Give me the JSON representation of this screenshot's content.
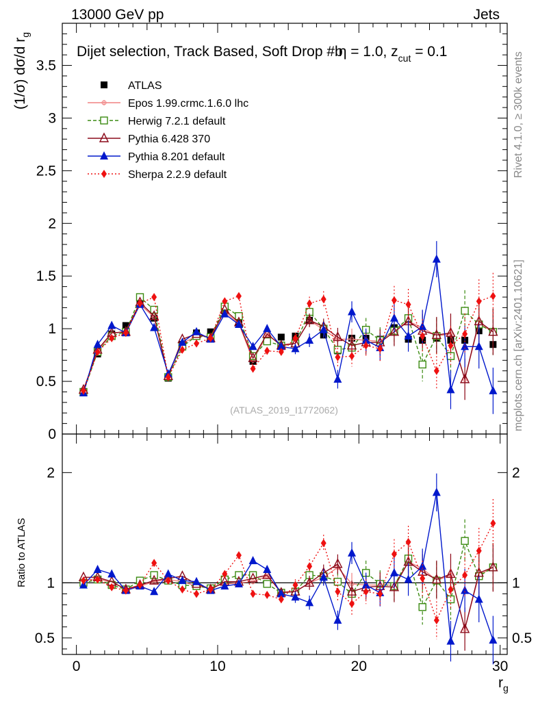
{
  "header": {
    "left": "13000 GeV pp",
    "right": "Jets",
    "title": "Dijet selection, Track Based, Soft Drop #b",
    "title_eta": "η = 1.0, z",
    "title_cut": "cut",
    "title_tail": " = 0.1"
  },
  "side_labels": {
    "rivet": "Rivet 4.1.0, ≥ 300k events",
    "mcplots": "mcplots.cern.ch [arXiv:2401.10621]"
  },
  "watermark": "(ATLAS_2019_I1772062)",
  "axes": {
    "ylabel_main": "(1/σ) dσ/d r",
    "ylabel_main_sub": "g",
    "ylabel_ratio": "Ratio to ATLAS",
    "xlabel": "r",
    "xlabel_sub": "g"
  },
  "colors": {
    "data": "#000000",
    "epos": "#f08080",
    "herwig": "#3a8a10",
    "pythia6": "#8b0a1a",
    "pythia8": "#0018cc",
    "sherpa": "#ee1111"
  },
  "chart_data": [
    {
      "type": "scatter",
      "panel": "main",
      "xlim": [
        -1,
        30.5
      ],
      "ylim": [
        0,
        3.9
      ],
      "xticks": [
        0,
        10,
        20,
        30
      ],
      "yticks": [
        0,
        0.5,
        1,
        1.5,
        2,
        2.5,
        3,
        3.5
      ],
      "ytick_labels": [
        "0",
        "0.5",
        "1",
        "1.5",
        "2",
        "2.5",
        "3",
        "3.5"
      ],
      "x": [
        0.5,
        1.5,
        2.5,
        3.5,
        4.5,
        5.5,
        6.5,
        7.5,
        8.5,
        9.5,
        10.5,
        11.5,
        12.5,
        13.5,
        14.5,
        15.5,
        16.5,
        17.5,
        18.5,
        19.5,
        20.5,
        21.5,
        22.5,
        23.5,
        24.5,
        25.5,
        26.5,
        27.5,
        28.5,
        29.5
      ],
      "series": [
        {
          "name": "ATLAS",
          "key": "data",
          "marker": "square",
          "values": [
            0.4,
            0.76,
            0.95,
            1.03,
            1.27,
            1.1,
            0.53,
            0.85,
            0.96,
            0.97,
            1.17,
            1.05,
            0.69,
            0.89,
            0.92,
            0.93,
            1.08,
            0.94,
            0.79,
            0.91,
            0.91,
            0.9,
            1.01,
            0.9,
            0.89,
            0.91,
            0.89,
            0.89,
            0.98,
            0.85
          ]
        },
        {
          "name": "Epos 1.99.crmc.1.6.0 lhc",
          "key": "epos",
          "marker": "cross",
          "values": [
            0.41,
            0.79,
            0.95,
            0.98,
            1.23,
            1.11,
            0.55,
            0.86,
            0.93,
            0.93,
            1.16,
            1.05,
            0.7,
            0.94,
            0.85,
            0.86,
            1.08,
            0.99,
            0.9,
            0.9,
            0.89,
            0.88,
            0.99,
            1.07,
            1.01,
            0.93,
            0.95,
            0.52,
            1.05,
            0.97
          ]
        },
        {
          "name": "Herwig 7.2.1 default",
          "key": "herwig",
          "marker": "open-square",
          "dash": "5,3",
          "values": [
            0.4,
            0.78,
            0.93,
            0.97,
            1.3,
            1.18,
            0.54,
            0.83,
            0.93,
            0.92,
            1.21,
            1.12,
            0.74,
            0.88,
            0.84,
            0.86,
            1.16,
            1.0,
            0.8,
            0.82,
            0.99,
            0.89,
            0.98,
            1.1,
            0.66,
            0.93,
            0.74,
            1.17,
            1.04,
            0.97
          ]
        },
        {
          "name": "Pythia 6.428 370",
          "key": "pythia6",
          "marker": "open-triangle",
          "values": [
            0.42,
            0.8,
            0.96,
            0.97,
            1.25,
            1.12,
            0.55,
            0.9,
            0.95,
            0.91,
            1.18,
            1.06,
            0.72,
            0.95,
            0.84,
            0.86,
            1.08,
            1.02,
            0.92,
            0.84,
            0.87,
            0.87,
            0.97,
            1.07,
            0.98,
            0.94,
            0.96,
            0.52,
            1.07,
            0.97
          ]
        },
        {
          "name": "Pythia 8.201 default",
          "key": "pythia8",
          "marker": "triangle",
          "values": [
            0.39,
            0.85,
            1.03,
            0.96,
            1.23,
            1.01,
            0.57,
            0.87,
            0.97,
            0.9,
            1.14,
            1.04,
            0.83,
            1.0,
            0.83,
            0.81,
            0.89,
            0.99,
            0.52,
            1.16,
            0.89,
            0.82,
            1.1,
            0.93,
            1.02,
            1.66,
            0.42,
            0.83,
            0.83,
            0.41
          ]
        },
        {
          "name": "Sherpa 2.2.9 default",
          "key": "sherpa",
          "marker": "diamond",
          "dash": "2,3",
          "values": [
            0.41,
            0.78,
            0.91,
            0.96,
            1.24,
            1.3,
            0.54,
            0.8,
            0.86,
            0.91,
            1.26,
            1.31,
            0.62,
            0.79,
            0.78,
            0.91,
            1.24,
            1.28,
            0.73,
            0.74,
            0.84,
            0.81,
            1.27,
            1.23,
            0.93,
            0.6,
            0.84,
            0.95,
            1.26,
            1.31
          ]
        }
      ]
    },
    {
      "type": "scatter",
      "panel": "ratio",
      "xlim": [
        -1,
        30.5
      ],
      "ylim": [
        0.35,
        2.35
      ],
      "yticks": [
        0.5,
        1,
        2
      ],
      "ytick_labels": [
        "0.5",
        "1",
        "2"
      ],
      "x": [
        0.5,
        1.5,
        2.5,
        3.5,
        4.5,
        5.5,
        6.5,
        7.5,
        8.5,
        9.5,
        10.5,
        11.5,
        12.5,
        13.5,
        14.5,
        15.5,
        16.5,
        17.5,
        18.5,
        19.5,
        20.5,
        21.5,
        22.5,
        23.5,
        24.5,
        25.5,
        26.5,
        27.5,
        28.5,
        29.5
      ],
      "series": [
        {
          "name": "Epos",
          "key": "epos",
          "marker": "cross",
          "values": [
            1.02,
            1.04,
            1.0,
            0.95,
            0.97,
            1.01,
            1.03,
            1.01,
            0.97,
            0.96,
            0.99,
            1.0,
            1.01,
            1.06,
            0.92,
            0.92,
            1.0,
            1.05,
            1.14,
            0.99,
            0.98,
            0.98,
            0.98,
            1.19,
            1.13,
            1.02,
            1.07,
            0.58,
            1.07,
            1.14
          ]
        },
        {
          "name": "Herwig",
          "key": "herwig",
          "marker": "open-square",
          "dash": "5,3",
          "values": [
            1.0,
            1.03,
            0.98,
            0.94,
            1.02,
            1.07,
            1.02,
            0.98,
            0.97,
            0.95,
            1.03,
            1.07,
            1.07,
            0.99,
            0.91,
            0.92,
            1.07,
            1.06,
            1.01,
            0.9,
            1.09,
            0.99,
            0.97,
            1.22,
            0.78,
            1.02,
            0.85,
            1.38,
            1.06,
            1.14
          ]
        },
        {
          "name": "Pythia6",
          "key": "pythia6",
          "marker": "open-triangle",
          "values": [
            1.05,
            1.05,
            1.01,
            0.94,
            0.98,
            1.02,
            1.04,
            1.06,
            0.99,
            0.94,
            1.01,
            1.01,
            1.04,
            1.07,
            0.91,
            0.92,
            1.0,
            1.09,
            1.17,
            0.92,
            0.96,
            0.97,
            0.96,
            1.19,
            1.1,
            1.03,
            1.08,
            0.58,
            1.09,
            1.14
          ]
        },
        {
          "name": "Pythia8",
          "key": "pythia8",
          "marker": "triangle",
          "values": [
            0.98,
            1.12,
            1.08,
            0.93,
            0.97,
            0.92,
            1.08,
            1.02,
            1.01,
            0.93,
            0.97,
            0.99,
            1.2,
            1.12,
            0.9,
            0.87,
            0.82,
            1.05,
            0.66,
            1.27,
            0.98,
            0.91,
            1.09,
            1.03,
            1.15,
            1.82,
            0.47,
            0.93,
            0.85,
            0.48
          ]
        },
        {
          "name": "Sherpa",
          "key": "sherpa",
          "marker": "diamond",
          "dash": "2,3",
          "values": [
            1.02,
            1.03,
            0.96,
            0.93,
            0.98,
            1.18,
            1.02,
            0.94,
            0.9,
            0.94,
            1.08,
            1.25,
            0.9,
            0.89,
            0.85,
            0.98,
            1.15,
            1.36,
            0.92,
            0.81,
            0.92,
            0.9,
            1.26,
            1.37,
            1.04,
            0.66,
            0.94,
            1.07,
            1.29,
            1.54
          ]
        }
      ]
    }
  ]
}
